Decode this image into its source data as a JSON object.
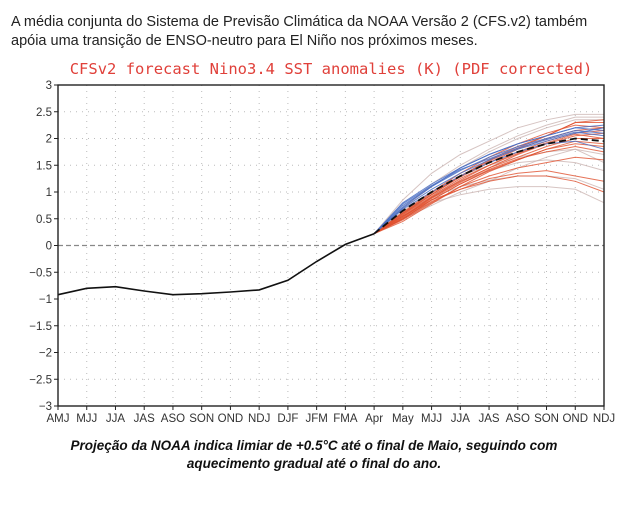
{
  "intro": {
    "line1": "A média conjunta do Sistema de Previsão Climática da NOAA Versão 2 (CFS.v2) também",
    "line2": "apóia uma transição de ENSO-neutro para El Niño nos próximos meses."
  },
  "caption": {
    "line1": "Projeção da NOAA indica limiar de +0.5°C até o final de Maio, seguindo com",
    "line2": "aquecimento gradual até o final do ano."
  },
  "colors": {
    "title": "#e0403a",
    "observed": "#111111",
    "ensemble_mean": "#111111",
    "recent_members": "#4a6fc4",
    "red_members": "#e0502e",
    "older_members": "#c8b0ae",
    "gridline": "#bbbbbb"
  },
  "chart_data": {
    "type": "line",
    "title": "CFSv2 forecast Nino3.4 SST anomalies (K) (PDF corrected)",
    "xlabel": "",
    "ylabel": "",
    "x": [
      "AMJ",
      "MJJ",
      "JJA",
      "JAS",
      "ASO",
      "SON",
      "OND",
      "NDJ",
      "DJF",
      "JFM",
      "FMA",
      "Apr",
      "May",
      "MJJ",
      "JJA",
      "JAS",
      "ASO",
      "SON",
      "OND",
      "NDJ"
    ],
    "ylim": [
      -3,
      3
    ],
    "yticks": [
      "3",
      "2.5",
      "2",
      "1.5",
      "1",
      "0.5",
      "0",
      "−0.5",
      "−1",
      "−1.5",
      "−2",
      "−2.5",
      "−3"
    ],
    "ytick_values": [
      3,
      2.5,
      2,
      1.5,
      1,
      0.5,
      0,
      -0.5,
      -1,
      -1.5,
      -2,
      -2.5,
      -3
    ],
    "grid": true,
    "zero_line": "dashed",
    "observed": {
      "name": "Observed",
      "start_index": 0,
      "values": [
        -0.92,
        -0.8,
        -0.77,
        -0.85,
        -0.92,
        -0.9,
        -0.87,
        -0.83,
        -0.65,
        -0.3,
        0.02,
        0.22
      ]
    },
    "ensemble_mean": {
      "name": "Ensemble mean",
      "start_index": 11,
      "values": [
        0.22,
        0.65,
        1.0,
        1.3,
        1.55,
        1.75,
        1.9,
        2.0,
        1.95
      ]
    },
    "members": [
      {
        "group": "recent",
        "start_index": 11,
        "values": [
          0.22,
          0.8,
          1.15,
          1.45,
          1.7,
          1.9,
          2.05,
          2.2,
          2.15
        ]
      },
      {
        "group": "recent",
        "start_index": 11,
        "values": [
          0.22,
          0.75,
          1.1,
          1.4,
          1.65,
          1.85,
          2.0,
          2.15,
          2.1
        ]
      },
      {
        "group": "recent",
        "start_index": 11,
        "values": [
          0.22,
          0.7,
          1.05,
          1.35,
          1.6,
          1.8,
          1.95,
          2.1,
          2.2
        ]
      },
      {
        "group": "recent",
        "start_index": 11,
        "values": [
          0.22,
          0.72,
          1.1,
          1.45,
          1.7,
          1.9,
          2.05,
          2.2,
          2.25
        ]
      },
      {
        "group": "recent",
        "start_index": 11,
        "values": [
          0.22,
          0.68,
          1.0,
          1.3,
          1.55,
          1.75,
          1.9,
          1.95,
          1.8
        ]
      },
      {
        "group": "recent",
        "start_index": 11,
        "values": [
          0.22,
          0.78,
          1.12,
          1.42,
          1.62,
          1.82,
          1.98,
          2.12,
          2.05
        ]
      },
      {
        "group": "red",
        "start_index": 11,
        "values": [
          0.22,
          0.6,
          0.95,
          1.3,
          1.6,
          1.85,
          2.05,
          2.3,
          2.3
        ]
      },
      {
        "group": "red",
        "start_index": 11,
        "values": [
          0.22,
          0.55,
          0.9,
          1.2,
          1.45,
          1.65,
          1.85,
          2.0,
          2.0
        ]
      },
      {
        "group": "red",
        "start_index": 11,
        "values": [
          0.22,
          0.5,
          0.85,
          1.15,
          1.4,
          1.6,
          1.8,
          1.9,
          1.85
        ]
      },
      {
        "group": "red",
        "start_index": 11,
        "values": [
          0.22,
          0.58,
          0.95,
          1.28,
          1.55,
          1.8,
          2.0,
          2.15,
          2.2
        ]
      },
      {
        "group": "red",
        "start_index": 11,
        "values": [
          0.22,
          0.62,
          1.0,
          1.35,
          1.65,
          1.9,
          2.1,
          2.25,
          2.2
        ]
      },
      {
        "group": "red",
        "start_index": 11,
        "values": [
          0.22,
          0.52,
          0.88,
          1.18,
          1.45,
          1.7,
          1.9,
          2.05,
          2.1
        ]
      },
      {
        "group": "red",
        "start_index": 11,
        "values": [
          0.22,
          0.48,
          0.8,
          1.1,
          1.3,
          1.45,
          1.55,
          1.65,
          1.6
        ]
      },
      {
        "group": "red",
        "start_index": 11,
        "values": [
          0.22,
          0.5,
          0.82,
          1.05,
          1.25,
          1.35,
          1.4,
          1.3,
          1.2
        ]
      },
      {
        "group": "red",
        "start_index": 11,
        "values": [
          0.22,
          0.55,
          0.85,
          1.05,
          1.2,
          1.3,
          1.3,
          1.2,
          1.0
        ]
      },
      {
        "group": "red",
        "start_index": 11,
        "values": [
          0.22,
          0.6,
          0.98,
          1.3,
          1.58,
          1.82,
          2.05,
          2.3,
          2.35
        ]
      },
      {
        "group": "red",
        "start_index": 11,
        "values": [
          0.22,
          0.45,
          0.78,
          1.1,
          1.38,
          1.6,
          1.8,
          1.95,
          1.9
        ]
      },
      {
        "group": "red",
        "start_index": 11,
        "values": [
          0.22,
          0.57,
          0.92,
          1.25,
          1.5,
          1.72,
          1.92,
          2.08,
          2.0
        ]
      },
      {
        "group": "red",
        "start_index": 11,
        "values": [
          0.22,
          0.53,
          0.9,
          1.22,
          1.5,
          1.75,
          1.95,
          2.1,
          2.15
        ]
      },
      {
        "group": "red",
        "start_index": 11,
        "values": [
          0.22,
          0.5,
          0.85,
          1.15,
          1.42,
          1.62,
          1.75,
          1.85,
          1.75
        ]
      },
      {
        "group": "older",
        "start_index": 11,
        "values": [
          0.22,
          0.85,
          1.35,
          1.7,
          1.95,
          2.2,
          2.35,
          2.45,
          2.45
        ]
      },
      {
        "group": "older",
        "start_index": 11,
        "values": [
          0.22,
          0.7,
          1.1,
          1.45,
          1.75,
          2.0,
          2.2,
          2.35,
          2.35
        ]
      },
      {
        "group": "older",
        "start_index": 11,
        "values": [
          0.22,
          0.6,
          0.9,
          1.1,
          1.22,
          1.3,
          1.3,
          1.25,
          1.05
        ]
      },
      {
        "group": "older",
        "start_index": 11,
        "values": [
          0.22,
          0.55,
          0.8,
          0.95,
          1.05,
          1.1,
          1.1,
          1.05,
          0.8
        ]
      },
      {
        "group": "older",
        "start_index": 11,
        "values": [
          0.22,
          0.65,
          1.0,
          1.3,
          1.5,
          1.65,
          1.75,
          1.8,
          1.7
        ]
      },
      {
        "group": "older",
        "start_index": 11,
        "values": [
          0.22,
          0.62,
          0.95,
          1.2,
          1.4,
          1.55,
          1.6,
          1.55,
          1.4
        ]
      },
      {
        "group": "older",
        "start_index": 11,
        "values": [
          0.22,
          0.5,
          0.75,
          1.0,
          1.2,
          1.45,
          1.65,
          1.8,
          1.55
        ]
      },
      {
        "group": "older",
        "start_index": 11,
        "values": [
          0.22,
          0.7,
          1.15,
          1.5,
          1.8,
          2.05,
          2.25,
          2.4,
          2.4
        ]
      }
    ]
  }
}
